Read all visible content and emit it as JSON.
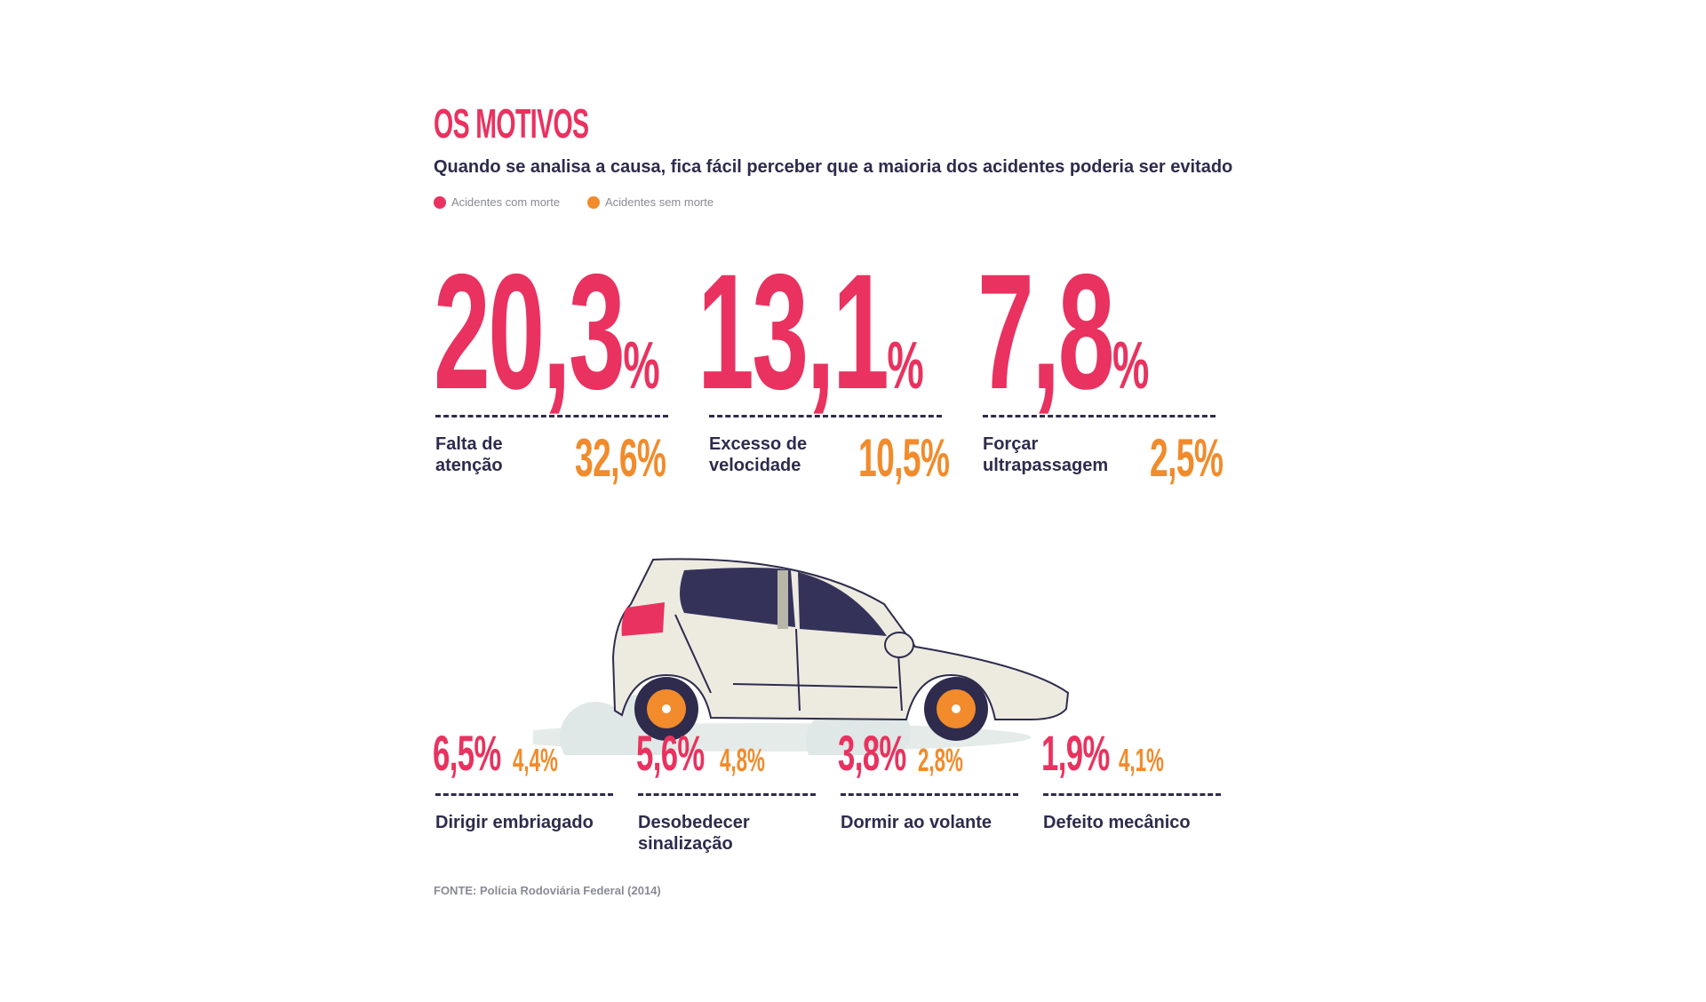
{
  "header": {
    "title": "OS MOTIVOS",
    "subtitle": "Quando se analisa a causa, fica fácil perceber que a maioria dos acidentes poderia ser evitado"
  },
  "legend": {
    "with_death": "Acidentes com morte",
    "without_death": "Acidentes sem morte",
    "with_death_color": "#e9325f",
    "without_death_color": "#f18b2b"
  },
  "top_stats": [
    {
      "label_line1": "Falta de",
      "label_line2": "atenção",
      "death_int": "20",
      "death_dec": ",3",
      "pct": "%",
      "no_death": "32,6%"
    },
    {
      "label_line1": "Excesso de",
      "label_line2": "velocidade",
      "death_int": "13",
      "death_dec": ",1",
      "pct": "%",
      "no_death": "10,5%"
    },
    {
      "label_line1": "Forçar",
      "label_line2": "ultrapassagem",
      "death_int": "7",
      "death_dec": ",8",
      "pct": "%",
      "no_death": "2,5%"
    }
  ],
  "bottom_stats": [
    {
      "label_line1": "Dirigir embriagado",
      "label_line2": "",
      "death": "6,5%",
      "no_death": "4,4%"
    },
    {
      "label_line1": "Desobedecer",
      "label_line2": "sinalização",
      "death": "5,6%",
      "no_death": "4,8%"
    },
    {
      "label_line1": "Dormir ao volante",
      "label_line2": "",
      "death": "3,8%",
      "no_death": "2,8%"
    },
    {
      "label_line1": "Defeito mecânico",
      "label_line2": "",
      "death": "1,9%",
      "no_death": "4,1%"
    }
  ],
  "illustration": {
    "icon": "car-icon"
  },
  "footer": {
    "source": "FONTE: Polícia Rodoviária Federal (2014)"
  }
}
